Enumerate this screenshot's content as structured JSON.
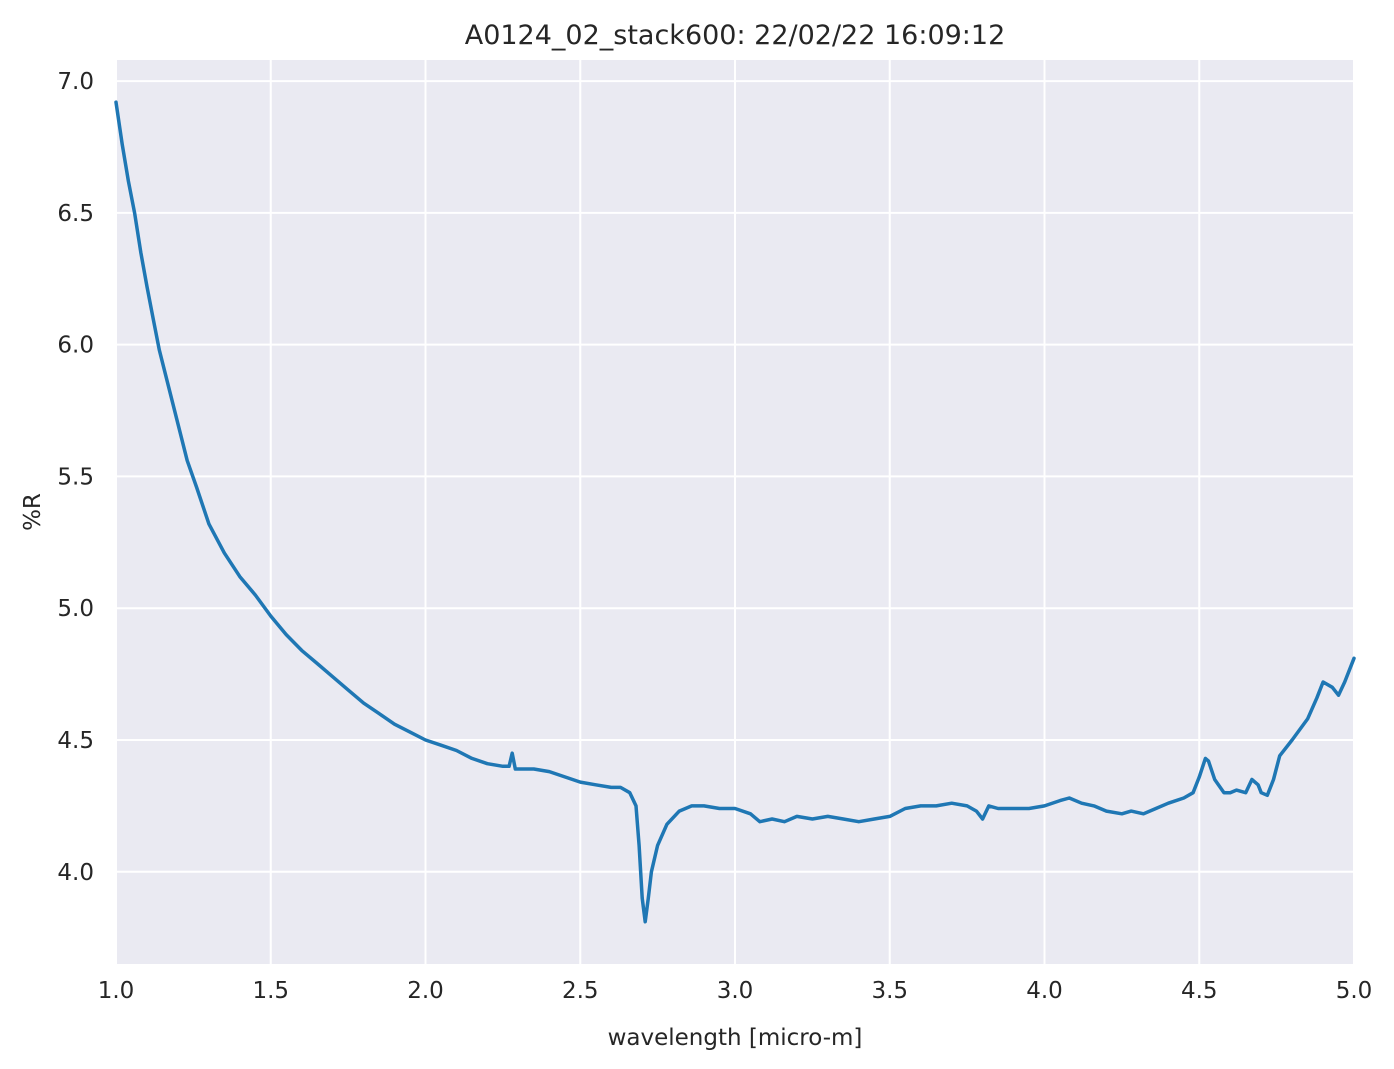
{
  "chart_data": {
    "type": "line",
    "title": "A0124_02_stack600:  22/02/22 16:09:12",
    "xlabel": "wavelength [micro-m]",
    "ylabel": "%R",
    "xlim": [
      1.0,
      5.0
    ],
    "ylim": [
      3.65,
      7.08
    ],
    "xticks": [
      1.0,
      1.5,
      2.0,
      2.5,
      3.0,
      3.5,
      4.0,
      4.5,
      5.0
    ],
    "xtick_labels": [
      "1.0",
      "1.5",
      "2.0",
      "2.5",
      "3.0",
      "3.5",
      "4.0",
      "4.5",
      "5.0"
    ],
    "yticks": [
      4.0,
      4.5,
      5.0,
      5.5,
      6.0,
      6.5,
      7.0
    ],
    "ytick_labels": [
      "4.0",
      "4.5",
      "5.0",
      "5.5",
      "6.0",
      "6.5",
      "7.0"
    ],
    "grid": true,
    "colors": {
      "background": "#eaeaf2",
      "grid": "#ffffff",
      "line": "#1f77b4"
    },
    "series": [
      {
        "x": [
          1.0,
          1.02,
          1.04,
          1.06,
          1.08,
          1.1,
          1.12,
          1.14,
          1.17,
          1.2,
          1.23,
          1.26,
          1.3,
          1.35,
          1.4,
          1.45,
          1.5,
          1.55,
          1.6,
          1.65,
          1.7,
          1.75,
          1.8,
          1.85,
          1.9,
          1.95,
          2.0,
          2.05,
          2.1,
          2.15,
          2.2,
          2.25,
          2.27,
          2.28,
          2.29,
          2.35,
          2.4,
          2.45,
          2.5,
          2.55,
          2.6,
          2.63,
          2.66,
          2.68,
          2.69,
          2.7,
          2.71,
          2.72,
          2.73,
          2.75,
          2.78,
          2.82,
          2.86,
          2.9,
          2.95,
          3.0,
          3.05,
          3.08,
          3.12,
          3.16,
          3.2,
          3.25,
          3.3,
          3.35,
          3.4,
          3.45,
          3.5,
          3.55,
          3.6,
          3.65,
          3.7,
          3.75,
          3.78,
          3.8,
          3.82,
          3.85,
          3.9,
          3.95,
          4.0,
          4.05,
          4.08,
          4.12,
          4.16,
          4.2,
          4.25,
          4.28,
          4.32,
          4.36,
          4.4,
          4.45,
          4.48,
          4.5,
          4.52,
          4.53,
          4.55,
          4.58,
          4.6,
          4.62,
          4.65,
          4.67,
          4.69,
          4.7,
          4.72,
          4.74,
          4.76,
          4.8,
          4.85,
          4.88,
          4.9,
          4.93,
          4.95,
          4.97,
          5.0
        ],
        "y": [
          6.92,
          6.76,
          6.62,
          6.5,
          6.35,
          6.22,
          6.1,
          5.98,
          5.84,
          5.7,
          5.56,
          5.46,
          5.32,
          5.21,
          5.12,
          5.05,
          4.97,
          4.9,
          4.84,
          4.79,
          4.74,
          4.69,
          4.64,
          4.6,
          4.56,
          4.53,
          4.5,
          4.48,
          4.46,
          4.43,
          4.41,
          4.4,
          4.4,
          4.45,
          4.39,
          4.39,
          4.38,
          4.36,
          4.34,
          4.33,
          4.32,
          4.32,
          4.3,
          4.25,
          4.1,
          3.9,
          3.81,
          3.9,
          4.0,
          4.1,
          4.18,
          4.23,
          4.25,
          4.25,
          4.24,
          4.24,
          4.22,
          4.19,
          4.2,
          4.19,
          4.21,
          4.2,
          4.21,
          4.2,
          4.19,
          4.2,
          4.21,
          4.24,
          4.25,
          4.25,
          4.26,
          4.25,
          4.23,
          4.2,
          4.25,
          4.24,
          4.24,
          4.24,
          4.25,
          4.27,
          4.28,
          4.26,
          4.25,
          4.23,
          4.22,
          4.23,
          4.22,
          4.24,
          4.26,
          4.28,
          4.3,
          4.36,
          4.43,
          4.42,
          4.35,
          4.3,
          4.3,
          4.31,
          4.3,
          4.35,
          4.33,
          4.3,
          4.29,
          4.35,
          4.44,
          4.5,
          4.58,
          4.66,
          4.72,
          4.7,
          4.67,
          4.72,
          4.81
        ]
      }
    ]
  }
}
